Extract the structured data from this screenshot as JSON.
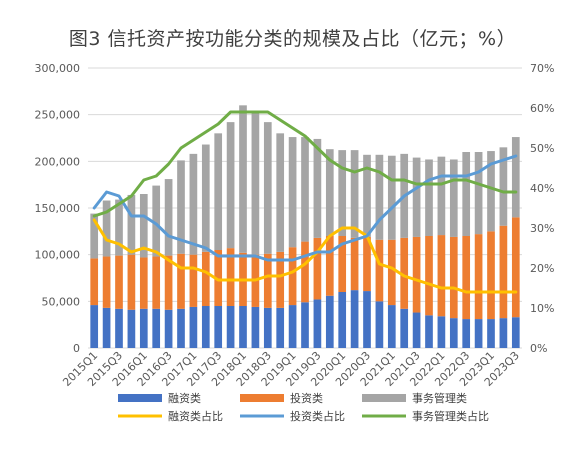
{
  "title": "图3 信托资产按功能分类的规模及占比（亿元；%）",
  "chart_data": {
    "type": "bar",
    "stacked": true,
    "title": "图3 信托资产按功能分类的规模及占比（亿元；%）",
    "categories": [
      "2015Q1",
      "2015Q2",
      "2015Q3",
      "2015Q4",
      "2016Q1",
      "2016Q2",
      "2016Q3",
      "2016Q4",
      "2017Q1",
      "2017Q2",
      "2017Q3",
      "2017Q4",
      "2018Q1",
      "2018Q2",
      "2018Q3",
      "2018Q4",
      "2019Q1",
      "2019Q2",
      "2019Q3",
      "2019Q4",
      "2020Q1",
      "2020Q2",
      "2020Q3",
      "2020Q4",
      "2021Q1",
      "2021Q2",
      "2021Q3",
      "2021Q4",
      "2022Q1",
      "2022Q2",
      "2022Q3",
      "2022Q4",
      "2023Q1",
      "2023Q2",
      "2023Q3"
    ],
    "tick_labels": [
      "2015Q1",
      "2015Q3",
      "2016Q1",
      "2016Q3",
      "2017Q1",
      "2017Q3",
      "2018Q1",
      "2018Q3",
      "2019Q1",
      "2019Q3",
      "2020Q1",
      "2020Q3",
      "2021Q1",
      "2021Q3",
      "2022Q1",
      "2022Q3",
      "2023Q1",
      "2023Q3"
    ],
    "ylim_left": [
      0,
      300000
    ],
    "yticks_left": [
      "0",
      "50,000",
      "100,000",
      "150,000",
      "200,000",
      "250,000",
      "300,000"
    ],
    "ylim_right": [
      0,
      70
    ],
    "yticks_right": [
      "0%",
      "10%",
      "20%",
      "30%",
      "40%",
      "50%",
      "60%",
      "70%"
    ],
    "grid": true,
    "legend_position": "bottom",
    "bar_series": [
      {
        "name": "融资类",
        "color": "#4472C4",
        "values": [
          46000,
          43000,
          42000,
          41000,
          42000,
          42000,
          41000,
          42000,
          44000,
          45000,
          45000,
          45000,
          45000,
          44000,
          43000,
          43000,
          46000,
          49000,
          52000,
          56000,
          60000,
          62000,
          61000,
          50000,
          46000,
          42000,
          38000,
          35000,
          34000,
          32000,
          31000,
          31000,
          31000,
          32000,
          33000
        ]
      },
      {
        "name": "投资类",
        "color": "#ED7D31",
        "values": [
          50000,
          55000,
          57000,
          59000,
          55000,
          56000,
          58000,
          59000,
          56000,
          58000,
          60000,
          62000,
          57000,
          56000,
          58000,
          60000,
          62000,
          65000,
          66000,
          64000,
          60000,
          56000,
          58000,
          66000,
          70000,
          76000,
          81000,
          85000,
          87000,
          87000,
          89000,
          91000,
          94000,
          99000,
          107000
        ]
      },
      {
        "name": "事务管理类",
        "color": "#A5A5A5",
        "values": [
          48000,
          60000,
          60000,
          64000,
          68000,
          76000,
          82000,
          100000,
          108000,
          115000,
          125000,
          135000,
          158000,
          152000,
          141000,
          127000,
          118000,
          112000,
          106000,
          93000,
          92000,
          94000,
          88000,
          91000,
          90000,
          90000,
          85000,
          82000,
          84000,
          83000,
          90000,
          88000,
          86000,
          84000,
          86000
        ]
      }
    ],
    "line_series": [
      {
        "name": "融资类占比",
        "color": "#FFC000",
        "values": [
          32,
          27,
          26,
          24,
          25,
          24,
          22,
          20,
          20,
          19,
          17,
          17,
          17,
          17,
          18,
          18,
          19,
          21,
          24,
          28,
          30,
          30,
          28,
          21,
          20,
          18,
          17,
          16,
          15,
          15,
          14,
          14,
          14,
          14,
          14
        ]
      },
      {
        "name": "投资类占比",
        "color": "#5B9BD5",
        "values": [
          35,
          39,
          38,
          33,
          33,
          31,
          28,
          27,
          26,
          25,
          23,
          23,
          23,
          23,
          22,
          22,
          22,
          23,
          24,
          24,
          26,
          27,
          28,
          32,
          35,
          38,
          40,
          42,
          43,
          43,
          43,
          44,
          46,
          47,
          48
        ]
      },
      {
        "name": "事务管理类占比",
        "color": "#70AD47",
        "values": [
          33,
          34,
          36,
          38,
          42,
          43,
          46,
          50,
          52,
          54,
          56,
          59,
          59,
          59,
          59,
          57,
          55,
          53,
          50,
          47,
          45,
          44,
          45,
          44,
          42,
          42,
          41,
          41,
          41,
          42,
          42,
          41,
          40,
          39,
          39
        ]
      }
    ]
  }
}
